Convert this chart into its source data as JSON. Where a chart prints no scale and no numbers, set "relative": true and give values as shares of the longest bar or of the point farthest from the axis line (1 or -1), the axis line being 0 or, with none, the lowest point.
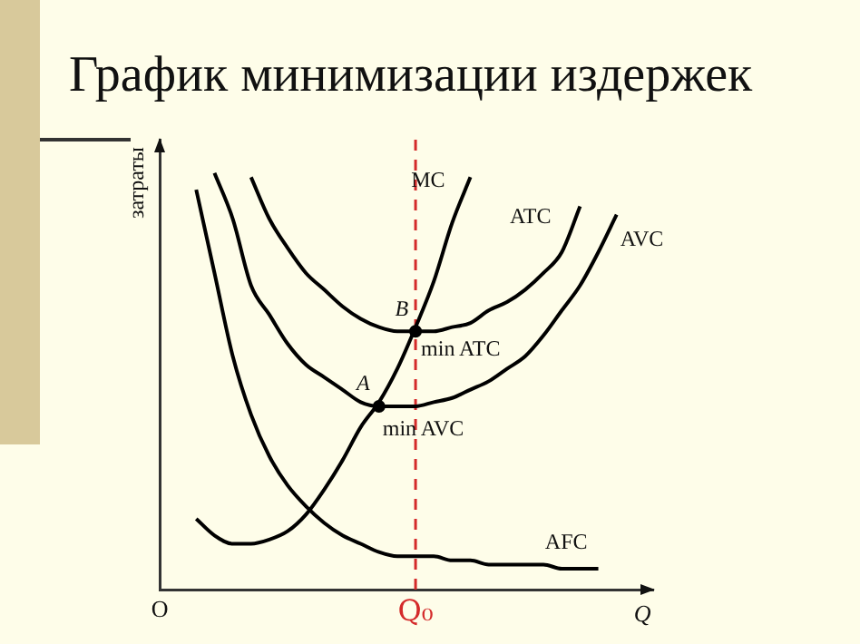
{
  "chart_data": {
    "type": "line",
    "title": "График минимизации издержек",
    "xlabel": "Q",
    "ylabel": "затраты",
    "relative": true,
    "categories": [
      "O",
      null,
      null,
      null,
      null,
      null,
      null,
      null,
      null,
      null,
      null,
      null,
      null,
      null,
      "Q₀",
      null,
      null,
      null,
      null,
      null,
      null,
      null,
      null,
      null,
      null,
      null,
      null,
      null
    ],
    "series": [
      {
        "name": "MC",
        "color": "#000000",
        "values": [
          null,
          null,
          0.17,
          0.13,
          0.11,
          0.11,
          0.12,
          0.14,
          0.18,
          0.24,
          0.31,
          0.39,
          0.45,
          0.53,
          0.63,
          0.74,
          0.88,
          0.99,
          null,
          null,
          null,
          null,
          null,
          null,
          null,
          null,
          null,
          null
        ]
      },
      {
        "name": "ATC",
        "color": "#000000",
        "values": [
          null,
          null,
          null,
          null,
          null,
          0.99,
          0.89,
          0.82,
          0.76,
          0.72,
          0.68,
          0.65,
          0.63,
          0.62,
          0.62,
          0.62,
          0.63,
          0.64,
          0.67,
          0.69,
          0.72,
          0.76,
          0.81,
          0.92,
          null,
          null,
          null,
          null
        ]
      },
      {
        "name": "AVC",
        "color": "#000000",
        "values": [
          null,
          null,
          null,
          1.0,
          0.89,
          0.73,
          0.66,
          0.59,
          0.54,
          0.51,
          0.48,
          0.45,
          0.44,
          0.44,
          0.44,
          0.45,
          0.46,
          0.48,
          0.5,
          0.53,
          0.56,
          0.61,
          0.67,
          0.73,
          0.81,
          0.9,
          null,
          null
        ]
      },
      {
        "name": "AFC",
        "color": "#000000",
        "values": [
          null,
          null,
          0.96,
          0.76,
          0.56,
          0.42,
          0.32,
          0.25,
          0.2,
          0.16,
          0.13,
          0.11,
          0.09,
          0.08,
          0.08,
          0.08,
          0.07,
          0.07,
          0.06,
          0.06,
          0.06,
          0.06,
          0.05,
          0.05,
          0.05,
          null,
          null,
          null
        ]
      },
      {
        "type": "scatter",
        "color": "#000000",
        "values": [
          null,
          null,
          null,
          null,
          null,
          null,
          null,
          null,
          null,
          null,
          null,
          null,
          0.44,
          null,
          0.62,
          null,
          null,
          null,
          null,
          null,
          null,
          null,
          null,
          null,
          null,
          null,
          null,
          null
        ]
      }
    ],
    "ref_lines": [
      {
        "axis": "x",
        "value": "Q₀",
        "color": "#d42a2a",
        "line_style": "dashed"
      }
    ],
    "annotations": [
      "A",
      "B",
      "min ATC",
      "min AVC"
    ]
  }
}
